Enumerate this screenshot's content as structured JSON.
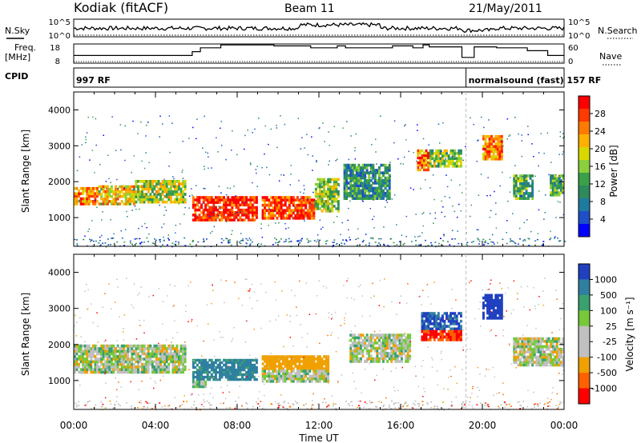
{
  "header": {
    "station": "Kodiak (fitACF)",
    "beam": "Beam 11",
    "date": "21/May/2011"
  },
  "top_panels": {
    "nsky_label": "N.Sky",
    "nsearch_label": "N.Search",
    "freq_label_1": "Freq.",
    "freq_label_2": "[MHz]",
    "nave_label": "Nave",
    "cpid_label": "CPID",
    "nsky_ticks": [
      "10^5",
      "10^0"
    ],
    "nsearch_ticks": [
      "10^5",
      "10^0"
    ],
    "freq_ticks": [
      "18",
      "8"
    ],
    "nave_ticks": [
      "60",
      "0"
    ],
    "cpid_segments": [
      {
        "start_hour": 0,
        "end_hour": 19.2,
        "label": "997 RF"
      },
      {
        "start_hour": 19.2,
        "end_hour": 24,
        "label": "normalsound (fast)  157 RF"
      }
    ],
    "freq_steps": [
      {
        "t": 0,
        "f": 12
      },
      {
        "t": 5.8,
        "f": 12
      },
      {
        "t": 5.8,
        "f": 14
      },
      {
        "t": 6.2,
        "f": 14
      },
      {
        "t": 6.2,
        "f": 16
      },
      {
        "t": 7.2,
        "f": 16
      },
      {
        "t": 7.2,
        "f": 17.5
      },
      {
        "t": 9.8,
        "f": 17.5
      },
      {
        "t": 9.8,
        "f": 17
      },
      {
        "t": 11.6,
        "f": 17
      },
      {
        "t": 11.6,
        "f": 16
      },
      {
        "t": 12.9,
        "f": 16
      },
      {
        "t": 12.9,
        "f": 17
      },
      {
        "t": 13.3,
        "f": 17
      },
      {
        "t": 13.3,
        "f": 16
      },
      {
        "t": 15.6,
        "f": 16
      },
      {
        "t": 15.6,
        "f": 17
      },
      {
        "t": 16.6,
        "f": 17
      },
      {
        "t": 16.6,
        "f": 16
      },
      {
        "t": 17.1,
        "f": 16
      },
      {
        "t": 17.1,
        "f": 17.5
      },
      {
        "t": 17.4,
        "f": 17.5
      },
      {
        "t": 17.4,
        "f": 16.5
      },
      {
        "t": 19.0,
        "f": 16.5
      },
      {
        "t": 19.0,
        "f": 11
      },
      {
        "t": 19.6,
        "f": 11
      },
      {
        "t": 19.6,
        "f": 16.5
      },
      {
        "t": 20.7,
        "f": 16.5
      },
      {
        "t": 20.7,
        "f": 16
      },
      {
        "t": 22.2,
        "f": 16
      },
      {
        "t": 22.2,
        "f": 14.5
      },
      {
        "t": 23.2,
        "f": 14.5
      },
      {
        "t": 23.2,
        "f": 12
      },
      {
        "t": 24,
        "f": 12
      }
    ]
  },
  "chart_data": [
    {
      "type": "heatmap",
      "panel": "power",
      "ylabel": "Slant Range [km]",
      "xlim": [
        0,
        24
      ],
      "ylim": [
        200,
        4500
      ],
      "yticks": [
        1000,
        2000,
        3000,
        4000
      ],
      "colorbar_label": "Power [dB]",
      "colorbar_ticks": [
        "28",
        "24",
        "20",
        "16",
        "12",
        "8",
        "4"
      ],
      "colorbar_colors": [
        "#ff0000",
        "#ff3a00",
        "#ff7a00",
        "#ffb000",
        "#d8d800",
        "#8ccf3c",
        "#3aa04a",
        "#2e8a5c",
        "#1f7aa0",
        "#1f4fc8",
        "#0000ff"
      ],
      "bands": [
        {
          "t0": 0,
          "t1": 1.2,
          "r0": 1350,
          "r1": 1850,
          "level": 0.8
        },
        {
          "t0": 1.2,
          "t1": 3.0,
          "r0": 1350,
          "r1": 1900,
          "level": 0.65
        },
        {
          "t0": 3.0,
          "t1": 5.5,
          "r0": 1400,
          "r1": 2050,
          "level": 0.55
        },
        {
          "t0": 5.8,
          "t1": 9.0,
          "r0": 900,
          "r1": 1600,
          "level": 0.95
        },
        {
          "t0": 9.2,
          "t1": 11.8,
          "r0": 950,
          "r1": 1600,
          "level": 0.9
        },
        {
          "t0": 11.8,
          "t1": 13.0,
          "r0": 1150,
          "r1": 2100,
          "level": 0.5
        },
        {
          "t0": 13.2,
          "t1": 15.5,
          "r0": 1500,
          "r1": 2500,
          "level": 0.3
        },
        {
          "t0": 16.8,
          "t1": 17.4,
          "r0": 2300,
          "r1": 2900,
          "level": 0.8
        },
        {
          "t0": 17.4,
          "t1": 19.0,
          "r0": 2400,
          "r1": 2900,
          "level": 0.45
        },
        {
          "t0": 20.0,
          "t1": 21.0,
          "r0": 2600,
          "r1": 3300,
          "level": 0.8
        },
        {
          "t0": 21.5,
          "t1": 22.5,
          "r0": 1500,
          "r1": 2200,
          "level": 0.4
        },
        {
          "t0": 23.3,
          "t1": 24,
          "r0": 1600,
          "r1": 2200,
          "level": 0.4
        }
      ]
    },
    {
      "type": "heatmap",
      "panel": "velocity",
      "ylabel": "Slant Range [km]",
      "xlabel": "Time UT",
      "xlim": [
        0,
        24
      ],
      "ylim": [
        200,
        4500
      ],
      "yticks": [
        1000,
        2000,
        3000,
        4000
      ],
      "xticks": [
        "00:00",
        "04:00",
        "08:00",
        "12:00",
        "16:00",
        "20:00",
        "00:00"
      ],
      "colorbar_label": "Velocity [m s⁻¹]",
      "colorbar_ticks": [
        "1000",
        "500",
        "100",
        "25",
        "-25",
        "-100",
        "-500",
        "-1000"
      ],
      "colorbar_colors": [
        "#2040c0",
        "#2f80a0",
        "#3aa070",
        "#77c93a",
        "#c0c0c0",
        "#c0c0c0",
        "#f0a000",
        "#ff6000",
        "#ff0000"
      ],
      "bands": [
        {
          "t0": 0,
          "t1": 5.5,
          "r0": 1200,
          "r1": 2000,
          "vel": 0
        },
        {
          "t0": 5.8,
          "t1": 9.0,
          "r0": 1000,
          "r1": 1600,
          "vel": 400
        },
        {
          "t0": 5.8,
          "t1": 6.5,
          "r0": 800,
          "r1": 1000,
          "vel": 100
        },
        {
          "t0": 9.2,
          "t1": 12.5,
          "r0": 1300,
          "r1": 1700,
          "vel": -250
        },
        {
          "t0": 9.2,
          "t1": 12.5,
          "r0": 950,
          "r1": 1300,
          "vel": 0
        },
        {
          "t0": 13.5,
          "t1": 16.5,
          "r0": 1500,
          "r1": 2300,
          "vel": 0
        },
        {
          "t0": 17.0,
          "t1": 19.0,
          "r0": 2400,
          "r1": 2900,
          "vel": 700
        },
        {
          "t0": 17.0,
          "t1": 19.0,
          "r0": 2100,
          "r1": 2400,
          "vel": -700
        },
        {
          "t0": 20.0,
          "t1": 21.0,
          "r0": 2700,
          "r1": 3400,
          "vel": 900
        },
        {
          "t0": 21.5,
          "t1": 24,
          "r0": 1400,
          "r1": 2200,
          "vel": 0
        }
      ]
    }
  ]
}
